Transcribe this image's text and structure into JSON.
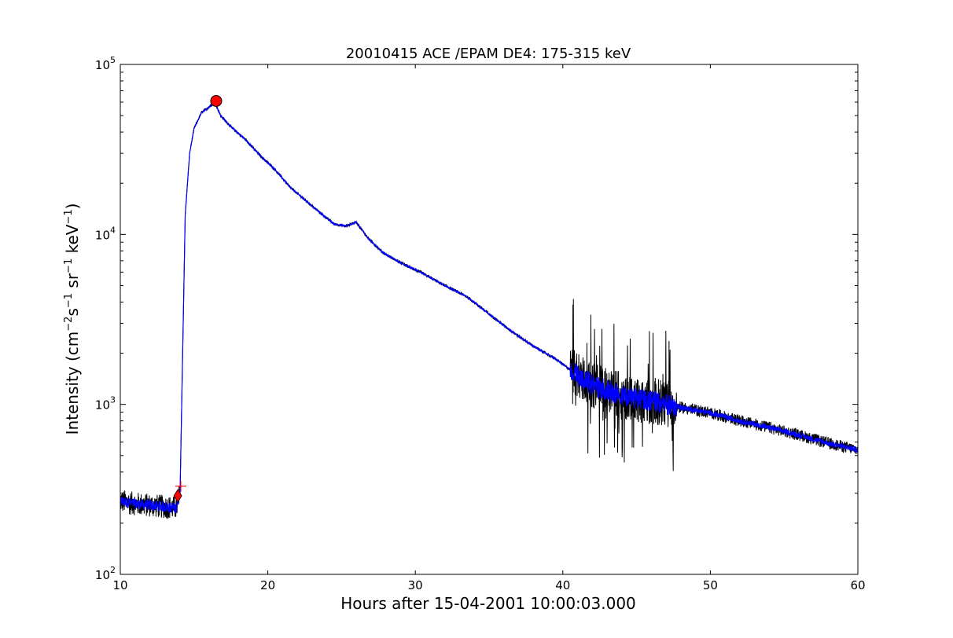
{
  "chart_data": {
    "type": "line",
    "title": "20010415 ACE /EPAM DE4: 175-315 keV",
    "xlabel": "Hours after 15-04-2001 10:00:03.000",
    "ylabel": {
      "prefix": "Intensity (cm",
      "exp1": "−2",
      "mid1": "s",
      "exp2": "−1",
      "mid2": " sr",
      "exp3": "−1",
      "mid3": " keV",
      "exp4": "−1",
      "suffix": ")"
    },
    "xlim": [
      10,
      60
    ],
    "ylim": [
      100,
      100000
    ],
    "yscale": "log",
    "grid": false,
    "x_ticks": [
      10,
      20,
      30,
      40,
      50,
      60
    ],
    "y_ticks": [
      {
        "base": "10",
        "exp": "2"
      },
      {
        "base": "10",
        "exp": "3"
      },
      {
        "base": "10",
        "exp": "4"
      },
      {
        "base": "10",
        "exp": "5"
      }
    ],
    "colors": {
      "raw": "#000000",
      "smoothed": "#0000ff",
      "markers": "#ff0000"
    },
    "series": [
      {
        "x": [
          10.0,
          11.0,
          12.0,
          13.0,
          13.8,
          14.05,
          14.2,
          14.4,
          14.7,
          15.0,
          15.5,
          16.0,
          16.4,
          16.8,
          17.5,
          18.5,
          19.5,
          20.5,
          21.5,
          22.5,
          23.5,
          24.5,
          25.3,
          26.0,
          26.8,
          27.8,
          29.0,
          30.5,
          32.0,
          33.5,
          35.0,
          36.5,
          38.0,
          39.5,
          40.5,
          42.0,
          44.0,
          46.0,
          48.0,
          50.0,
          52.0,
          54.0,
          56.0,
          58.0,
          60.0
        ],
        "y": [
          270,
          260,
          255,
          250,
          245,
          300,
          1500,
          13000,
          30000,
          42000,
          52000,
          56000,
          60000,
          50000,
          43000,
          36000,
          29000,
          24000,
          19000,
          16000,
          13500,
          11500,
          11200,
          11800,
          9500,
          7800,
          6800,
          5900,
          5000,
          4300,
          3400,
          2700,
          2200,
          1850,
          1600,
          1300,
          1120,
          1050,
          960,
          890,
          800,
          730,
          660,
          590,
          540
        ]
      }
    ],
    "markers": [
      {
        "label": "onset",
        "shape": "diamond",
        "x": 13.9,
        "y": 290
      },
      {
        "label": "onset-cross",
        "shape": "plus",
        "x": 14.1,
        "y": 330
      },
      {
        "label": "peak",
        "shape": "circle",
        "x": 16.5,
        "y": 61000
      }
    ],
    "noise": [
      {
        "x_from": 10.0,
        "x_to": 14.0,
        "amp": 0.07
      },
      {
        "x_from": 14.0,
        "x_to": 40.5,
        "amp": 0.008
      },
      {
        "x_from": 40.5,
        "x_to": 47.7,
        "amp": 0.14
      },
      {
        "x_from": 47.7,
        "x_to": 60.0,
        "amp": 0.035
      }
    ]
  }
}
